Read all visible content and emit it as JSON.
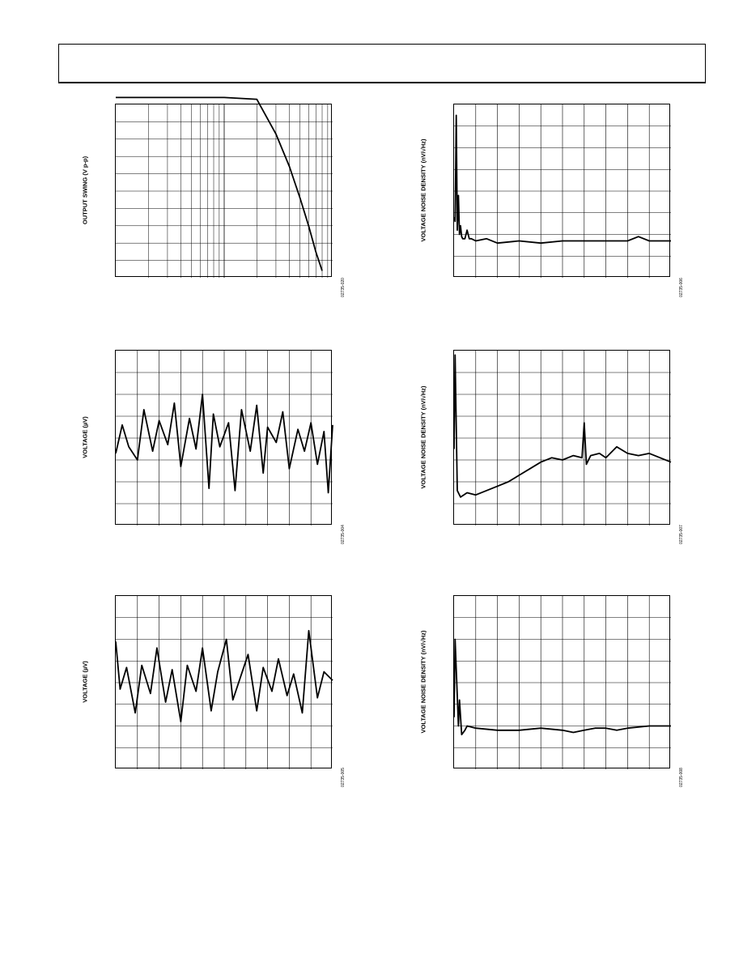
{
  "header": {
    "text": ""
  },
  "chart_data": [
    {
      "id": "output-swing",
      "type": "line",
      "ylabel": "OUTPUT SWING (V p-p)",
      "figure_id": "02735-020",
      "x_scale": "log",
      "xlim": [
        0.1,
        10
      ],
      "ylim": [
        0,
        10
      ],
      "grid": true,
      "series": [
        {
          "x": [
            0.1,
            1.0,
            2.0,
            3.0,
            4.0,
            5.0,
            6.0,
            7.0,
            8.0
          ],
          "y": [
            10.4,
            10.4,
            10.3,
            8.3,
            6.4,
            4.6,
            3.0,
            1.5,
            0.4
          ]
        }
      ]
    },
    {
      "id": "noise-density-1",
      "type": "line",
      "ylabel": "VOLTAGE NOISE DENSITY (nV/√Hz)",
      "figure_id": "02735-006",
      "xlim": [
        0,
        10
      ],
      "ylim": [
        0,
        8
      ],
      "grid": true,
      "series": [
        {
          "x": [
            0.0,
            0.05,
            0.1,
            0.15,
            0.2,
            0.25,
            0.3,
            0.35,
            0.4,
            0.5,
            0.6,
            0.7,
            0.8,
            1.0,
            1.5,
            2.0,
            3.0,
            4.0,
            5.0,
            6.0,
            7.0,
            8.0,
            8.5,
            9.0,
            10.0
          ],
          "y": [
            2.8,
            2.6,
            7.5,
            2.2,
            3.8,
            2.0,
            2.4,
            1.9,
            1.8,
            1.8,
            2.2,
            1.8,
            1.8,
            1.7,
            1.8,
            1.6,
            1.7,
            1.6,
            1.7,
            1.7,
            1.7,
            1.7,
            1.9,
            1.7,
            1.7
          ]
        }
      ]
    },
    {
      "id": "voltage-1",
      "type": "line",
      "ylabel": "VOLTAGE (µV)",
      "figure_id": "02735-004",
      "xlim": [
        0,
        10
      ],
      "ylim": [
        -4,
        4
      ],
      "grid": true,
      "series": [
        {
          "x": [
            0.0,
            0.3,
            0.6,
            1.0,
            1.3,
            1.7,
            2.0,
            2.4,
            2.7,
            3.0,
            3.4,
            3.7,
            4.0,
            4.3,
            4.5,
            4.8,
            5.2,
            5.5,
            5.8,
            6.2,
            6.5,
            6.8,
            7.0,
            7.4,
            7.7,
            8.0,
            8.4,
            8.7,
            9.0,
            9.3,
            9.6,
            9.8,
            10.0
          ],
          "y": [
            -0.7,
            0.6,
            -0.4,
            -1.0,
            1.3,
            -0.6,
            0.8,
            -0.3,
            1.6,
            -1.3,
            0.9,
            -0.5,
            2.0,
            -2.3,
            1.1,
            -0.4,
            0.7,
            -2.4,
            1.3,
            -0.6,
            1.5,
            -1.6,
            0.5,
            -0.2,
            1.2,
            -1.4,
            0.4,
            -0.6,
            0.7,
            -1.2,
            0.3,
            -2.5,
            0.6
          ]
        }
      ]
    },
    {
      "id": "noise-density-2",
      "type": "line",
      "ylabel": "VOLTAGE NOISE DENSITY (nV/√Hz)",
      "figure_id": "02735-007",
      "xlim": [
        0,
        10
      ],
      "ylim": [
        0,
        8
      ],
      "grid": true,
      "series": [
        {
          "x": [
            0.0,
            0.05,
            0.15,
            0.3,
            0.6,
            1.0,
            1.5,
            2.0,
            2.5,
            3.0,
            3.5,
            4.0,
            4.5,
            5.0,
            5.5,
            5.9,
            6.0,
            6.1,
            6.3,
            6.7,
            7.0,
            7.5,
            8.0,
            8.5,
            9.0,
            9.5,
            10.0
          ],
          "y": [
            3.5,
            7.8,
            1.6,
            1.3,
            1.5,
            1.4,
            1.6,
            1.8,
            2.0,
            2.3,
            2.6,
            2.9,
            3.1,
            3.0,
            3.2,
            3.1,
            4.7,
            2.8,
            3.2,
            3.3,
            3.1,
            3.6,
            3.3,
            3.2,
            3.3,
            3.1,
            2.9
          ]
        }
      ]
    },
    {
      "id": "voltage-2",
      "type": "line",
      "ylabel": "VOLTAGE (µV)",
      "figure_id": "02735-005",
      "xlim": [
        0,
        10
      ],
      "ylim": [
        -4,
        4
      ],
      "grid": true,
      "series": [
        {
          "x": [
            0.0,
            0.2,
            0.5,
            0.9,
            1.2,
            1.6,
            1.9,
            2.3,
            2.6,
            3.0,
            3.3,
            3.7,
            4.0,
            4.4,
            4.7,
            5.1,
            5.4,
            5.8,
            6.1,
            6.5,
            6.8,
            7.2,
            7.5,
            7.9,
            8.2,
            8.6,
            8.9,
            9.3,
            9.6,
            10.0
          ],
          "y": [
            1.9,
            -0.3,
            0.7,
            -1.4,
            0.8,
            -0.5,
            1.6,
            -0.9,
            0.6,
            -1.8,
            0.8,
            -0.4,
            1.6,
            -1.3,
            0.5,
            2.0,
            -0.8,
            0.4,
            1.3,
            -1.3,
            0.7,
            -0.4,
            1.1,
            -0.6,
            0.4,
            -1.4,
            2.4,
            -0.7,
            0.5,
            0.1
          ]
        }
      ]
    },
    {
      "id": "noise-density-3",
      "type": "line",
      "ylabel": "VOLTAGE NOISE DENSITY (nV/√Hz)",
      "figure_id": "02735-008",
      "xlim": [
        0,
        10
      ],
      "ylim": [
        0,
        8
      ],
      "grid": true,
      "series": [
        {
          "x": [
            0.0,
            0.05,
            0.2,
            0.25,
            0.35,
            0.5,
            0.6,
            1.0,
            2.0,
            3.0,
            4.0,
            5.0,
            5.5,
            6.0,
            6.5,
            7.0,
            7.5,
            8.0,
            9.0,
            10.0
          ],
          "y": [
            2.4,
            6.0,
            2.0,
            3.2,
            1.6,
            1.8,
            2.0,
            1.9,
            1.8,
            1.8,
            1.9,
            1.8,
            1.7,
            1.8,
            1.9,
            1.9,
            1.8,
            1.9,
            2.0,
            2.0
          ]
        }
      ]
    }
  ]
}
